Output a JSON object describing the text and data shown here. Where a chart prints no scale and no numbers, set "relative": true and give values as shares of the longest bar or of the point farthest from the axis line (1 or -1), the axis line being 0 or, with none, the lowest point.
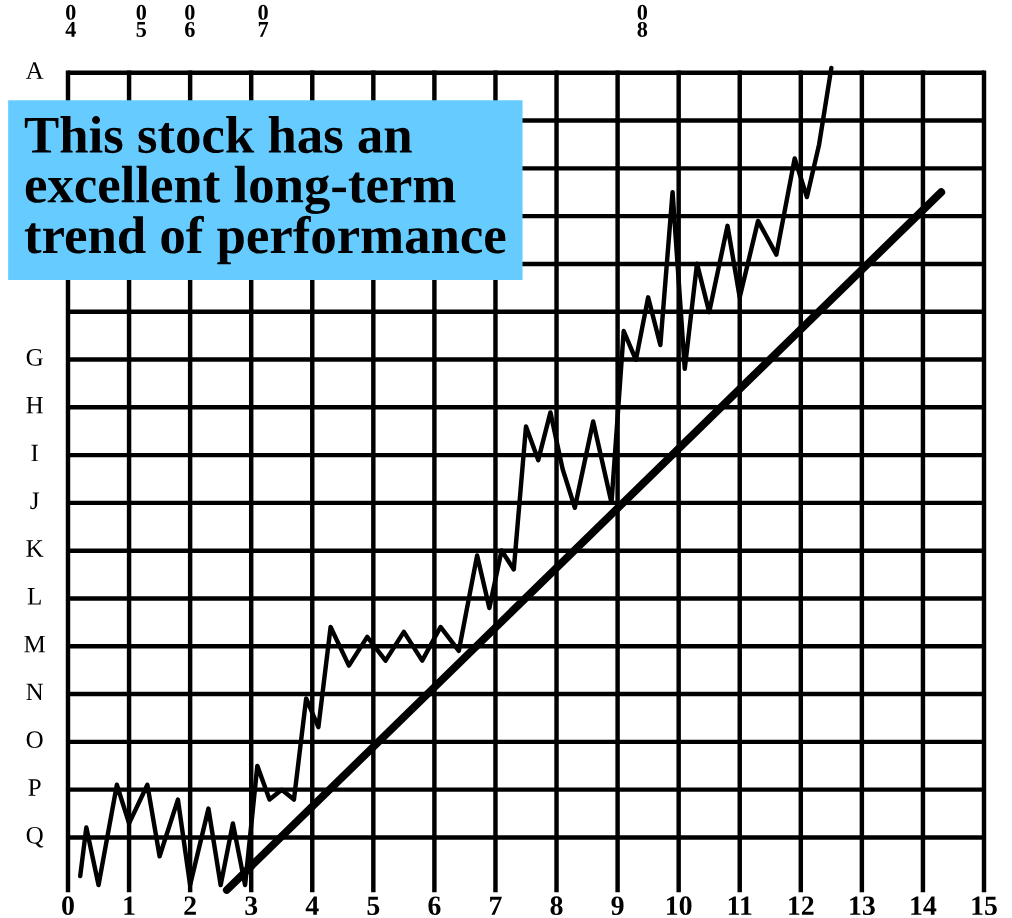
{
  "chart_data": {
    "type": "line",
    "relative": true,
    "xlim": [
      0,
      15
    ],
    "xticks": [
      0,
      1,
      2,
      3,
      4,
      5,
      6,
      7,
      8,
      9,
      10,
      11,
      12,
      13,
      14,
      15
    ],
    "grid": true,
    "annotations": [
      "This stock has an\nexcellent long-term\ntrend of performance",
      "04",
      "05",
      "06",
      "07",
      "08",
      "A",
      null,
      null,
      null,
      null,
      null,
      "G",
      "H",
      "I",
      "J",
      "K",
      "L",
      "M",
      "N",
      "O",
      "P",
      "Q"
    ],
    "series": [
      {
        "color": "#000000",
        "x": [
          0.2,
          0.3,
          0.5,
          0.8,
          1.0,
          1.3,
          1.5,
          1.8,
          2.0,
          2.3,
          2.5,
          2.7,
          2.9,
          3.1,
          3.3,
          3.5,
          3.7,
          3.9,
          4.1,
          4.3,
          4.6,
          4.9,
          5.2,
          5.5,
          5.8,
          6.1,
          6.4,
          6.7,
          6.9,
          7.1,
          7.3,
          7.5,
          7.7,
          7.9,
          8.1,
          8.3,
          8.6,
          8.9,
          9.1,
          9.3,
          9.5,
          9.7,
          9.9,
          10.1,
          10.3,
          10.5,
          10.8,
          11.0,
          11.3,
          11.6,
          11.9,
          12.1,
          12.3,
          12.5
        ],
        "values": [
          0.017,
          0.076,
          0.006,
          0.128,
          0.081,
          0.128,
          0.041,
          0.11,
          0.006,
          0.099,
          0.006,
          0.081,
          0.006,
          0.151,
          0.11,
          0.122,
          0.11,
          0.233,
          0.198,
          0.32,
          0.273,
          0.308,
          0.279,
          0.314,
          0.279,
          0.32,
          0.291,
          0.407,
          0.343,
          0.413,
          0.39,
          0.564,
          0.523,
          0.581,
          0.512,
          0.465,
          0.57,
          0.471,
          0.68,
          0.645,
          0.721,
          0.663,
          0.849,
          0.634,
          0.762,
          0.703,
          0.808,
          0.721,
          0.814,
          0.773,
          0.89,
          0.843,
          0.907,
          1.0
        ]
      },
      {
        "type": "line",
        "color": "#000000",
        "x": [
          2.6,
          14.3
        ],
        "values": [
          0.0,
          0.849
        ]
      }
    ]
  }
}
